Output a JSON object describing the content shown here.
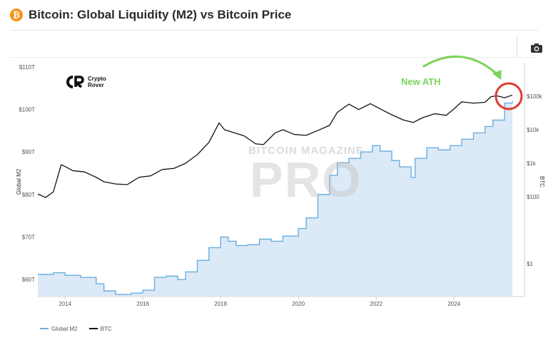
{
  "header": {
    "badge_symbol": "₿",
    "title": "Bitcoin: Global Liquidity (M2) vs Bitcoin Price"
  },
  "toolbar": {
    "camera_icon": "camera-icon"
  },
  "branding": {
    "crypto_rover_line1": "Crypto",
    "crypto_rover_line2": "Rover",
    "watermark_top": "BITCOIN MAGAZINE",
    "watermark_main": "PRO"
  },
  "annotation": {
    "text": "New ATH",
    "color": "#7cd35c",
    "circle_color": "#e03a2f"
  },
  "chart_data": {
    "type": "area",
    "title": "Bitcoin: Global Liquidity (M2) vs Bitcoin Price",
    "xlabel": "",
    "ylabel_left": "Global M2",
    "ylabel_right": "BTC",
    "x_range": [
      2013.3,
      2025.5
    ],
    "x_ticks": [
      "2014",
      "2016",
      "2018",
      "2020",
      "2022",
      "2024"
    ],
    "y_left_range_trillions": [
      56,
      111
    ],
    "y_left_ticks": [
      "$60T",
      "$70T",
      "$80T",
      "$90T",
      "$100T",
      "$110T"
    ],
    "y_left_tick_values": [
      60,
      70,
      80,
      90,
      100,
      110
    ],
    "y_right_scale": "log",
    "y_right_ticks": [
      "$100k",
      "$10k",
      "$1k",
      "$100",
      "$1"
    ],
    "y_right_tick_values": [
      100000,
      10000,
      1000,
      100,
      1
    ],
    "legend_position": "bottom-left",
    "series": [
      {
        "name": "Global M2",
        "color": "#6aaee0",
        "fill": "#dce9f6",
        "unit": "USD trillions",
        "x": [
          2013.3,
          2013.7,
          2014.0,
          2014.4,
          2014.8,
          2015.0,
          2015.3,
          2015.7,
          2016.0,
          2016.3,
          2016.6,
          2016.9,
          2017.1,
          2017.4,
          2017.7,
          2018.0,
          2018.2,
          2018.4,
          2018.7,
          2019.0,
          2019.3,
          2019.6,
          2020.0,
          2020.2,
          2020.5,
          2020.8,
          2021.0,
          2021.3,
          2021.6,
          2021.9,
          2022.1,
          2022.4,
          2022.6,
          2022.9,
          2023.0,
          2023.3,
          2023.6,
          2023.9,
          2024.2,
          2024.5,
          2024.8,
          2025.0,
          2025.3,
          2025.5
        ],
        "values": [
          61.2,
          61.6,
          61.0,
          60.5,
          59.0,
          57.3,
          56.5,
          56.8,
          57.5,
          60.5,
          60.8,
          60.0,
          61.8,
          64.5,
          67.5,
          70.0,
          69.0,
          68.0,
          68.2,
          69.5,
          69.0,
          70.2,
          72.0,
          74.5,
          80.0,
          84.5,
          87.5,
          88.5,
          90.0,
          91.5,
          90.2,
          88.0,
          86.5,
          84.0,
          88.5,
          91.0,
          90.5,
          91.5,
          93.0,
          94.5,
          96.0,
          97.5,
          101.5,
          102.0
        ]
      },
      {
        "name": "BTC",
        "color": "#111111",
        "unit": "USD",
        "x": [
          2013.3,
          2013.5,
          2013.7,
          2013.9,
          2014.0,
          2014.2,
          2014.5,
          2014.8,
          2015.0,
          2015.3,
          2015.6,
          2015.9,
          2016.2,
          2016.5,
          2016.8,
          2017.1,
          2017.4,
          2017.7,
          2017.96,
          2018.1,
          2018.3,
          2018.6,
          2018.9,
          2019.1,
          2019.4,
          2019.6,
          2019.9,
          2020.2,
          2020.5,
          2020.8,
          2021.0,
          2021.3,
          2021.55,
          2021.85,
          2022.1,
          2022.4,
          2022.7,
          2022.95,
          2023.2,
          2023.5,
          2023.8,
          2024.0,
          2024.2,
          2024.5,
          2024.8,
          2024.95,
          2025.1,
          2025.3,
          2025.5
        ],
        "values": [
          120,
          95,
          140,
          900,
          800,
          600,
          550,
          380,
          280,
          240,
          230,
          380,
          420,
          650,
          700,
          1000,
          1800,
          4200,
          16000,
          10000,
          8500,
          6600,
          3800,
          3600,
          8000,
          10000,
          7200,
          6800,
          9500,
          13500,
          33000,
          58000,
          40000,
          60000,
          42000,
          28000,
          19500,
          16500,
          23000,
          30000,
          27000,
          42000,
          68000,
          62000,
          66000,
          97000,
          103000,
          90000,
          108000
        ]
      }
    ]
  },
  "legend": {
    "items": [
      "Global M2",
      "BTC"
    ]
  }
}
